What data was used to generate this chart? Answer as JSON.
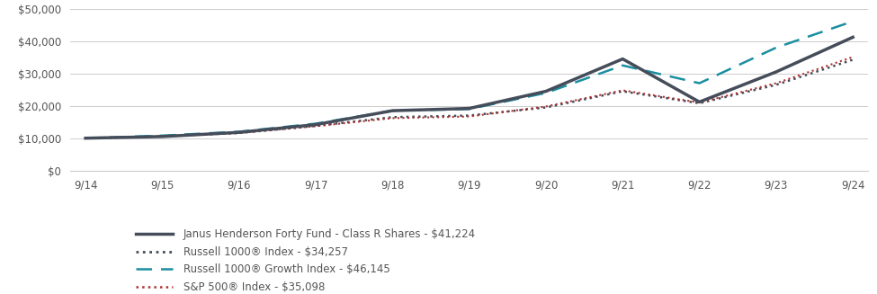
{
  "x_labels": [
    "9/14",
    "9/15",
    "9/16",
    "9/17",
    "9/18",
    "9/19",
    "9/20",
    "9/21",
    "9/22",
    "9/23",
    "9/24"
  ],
  "x_positions": [
    0,
    1,
    2,
    3,
    4,
    5,
    6,
    7,
    8,
    9,
    10
  ],
  "fund": [
    10000,
    10500,
    11800,
    14200,
    18500,
    19200,
    24500,
    34500,
    21200,
    30500,
    41224
  ],
  "russell1000": [
    10000,
    10600,
    11600,
    13800,
    16500,
    17000,
    19500,
    24500,
    20800,
    26500,
    34257
  ],
  "russell1000_growth": [
    10000,
    10800,
    12000,
    14500,
    18500,
    19000,
    24000,
    32500,
    27000,
    38000,
    46145
  ],
  "sp500": [
    10000,
    10600,
    11600,
    13700,
    16200,
    16700,
    19800,
    24800,
    21000,
    27000,
    35098
  ],
  "fund_color": "#454d5a",
  "russell1000_color": "#454d5a",
  "russell1000_growth_color": "#1a8fa0",
  "sp500_color": "#b03030",
  "ylim": [
    0,
    50000
  ],
  "yticks": [
    0,
    10000,
    20000,
    30000,
    40000,
    50000
  ],
  "legend_entries": [
    "Janus Henderson Forty Fund - Class R Shares - $41,224",
    "Russell 1000® Index - $34,257",
    "Russell 1000® Growth Index - $46,145",
    "S&P 500® Index - $35,098"
  ],
  "background_color": "#ffffff",
  "grid_color": "#cccccc",
  "font_color": "#555555"
}
